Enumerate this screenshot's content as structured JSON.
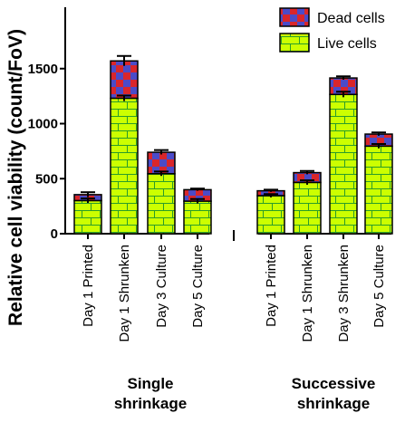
{
  "chart_data": {
    "type": "bar",
    "stacked": true,
    "ylabel": "Relative cell viability (count/FoV)",
    "ylim": [
      0,
      2000
    ],
    "yticks": [
      "0",
      "500",
      "1000",
      "1500"
    ],
    "grid": false,
    "legend_position": "top-right",
    "groups": [
      {
        "label": "Single shrinkage",
        "label_lines": [
          "Single",
          "shrinkage"
        ]
      },
      {
        "label": "Successive shrinkage",
        "label_lines": [
          "Successive",
          "shrinkage"
        ]
      }
    ],
    "categories": [
      "Day 1 Printed",
      "Day 1 Shrunken",
      "Day 3 Culture",
      "Day 5 Culture",
      "Day 1 Printed",
      "Day 1 Shrunken",
      "Day 3 Shrunken",
      "Day 5 Culture"
    ],
    "category_group": [
      0,
      0,
      0,
      0,
      1,
      1,
      1,
      1
    ],
    "series": [
      {
        "name": "Live cells",
        "values": [
          300,
          1230,
          545,
          295,
          345,
          465,
          1265,
          795
        ],
        "error": [
          20,
          25,
          20,
          20,
          15,
          20,
          25,
          20
        ],
        "color": "#ccff00",
        "pattern_color": "#2a9d2a"
      },
      {
        "name": "Dead cells",
        "values": [
          55,
          340,
          195,
          105,
          45,
          90,
          150,
          110
        ],
        "error": [
          22,
          45,
          20,
          10,
          10,
          15,
          15,
          15
        ],
        "color": "#d9262b",
        "pattern_color": "#4b4bc8"
      }
    ]
  }
}
